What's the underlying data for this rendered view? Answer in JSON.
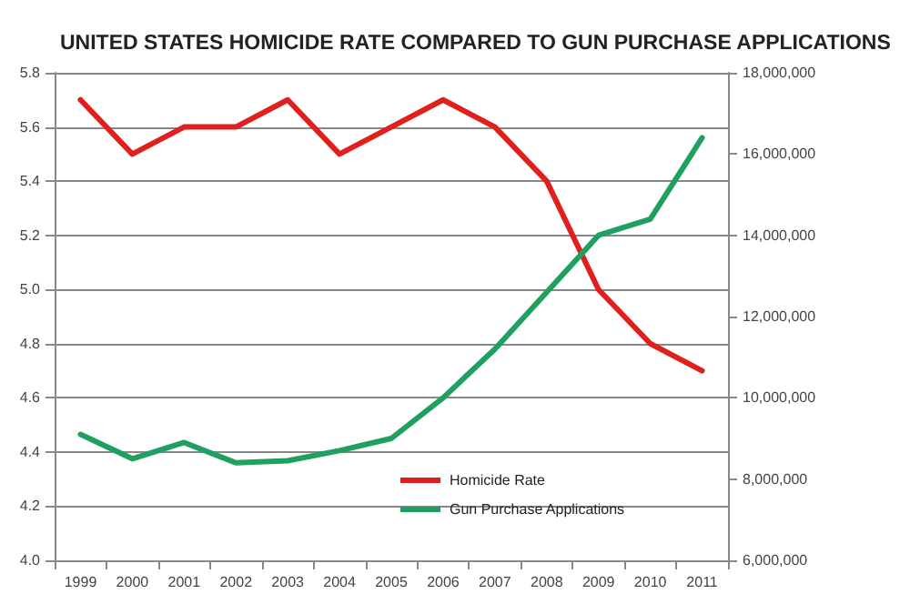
{
  "chart_data": {
    "type": "line",
    "title": "UNITED STATES HOMICIDE RATE COMPARED TO GUN PURCHASE APPLICATIONS",
    "categories": [
      "1999",
      "2000",
      "2001",
      "2002",
      "2003",
      "2004",
      "2005",
      "2006",
      "2007",
      "2008",
      "2009",
      "2010",
      "2011"
    ],
    "series": [
      {
        "name": "Homicide Rate",
        "color": "#e0201e",
        "values": [
          5.7,
          5.5,
          5.6,
          5.6,
          5.7,
          5.5,
          5.6,
          5.7,
          5.6,
          5.4,
          5.0,
          4.8,
          4.7
        ]
      },
      {
        "name": "Gun Purchase Applications",
        "color": "#20a060",
        "axis": "y2",
        "values": [
          9100000,
          8500000,
          8900000,
          8400000,
          8450000,
          8700000,
          9000000,
          10000000,
          11200000,
          12600000,
          14000000,
          14400000,
          16400000
        ]
      }
    ],
    "ylim": [
      4.0,
      5.8
    ],
    "yticks": [
      {
        "value": 4.0,
        "label": "4.0"
      },
      {
        "value": 4.2,
        "label": "4.2"
      },
      {
        "value": 4.4,
        "label": "4.4"
      },
      {
        "value": 4.6,
        "label": "4.6"
      },
      {
        "value": 4.8,
        "label": "4.8"
      },
      {
        "value": 5.0,
        "label": "5.0"
      },
      {
        "value": 5.2,
        "label": "5.2"
      },
      {
        "value": 5.4,
        "label": "5.4"
      },
      {
        "value": 5.6,
        "label": "5.6"
      },
      {
        "value": 5.8,
        "label": "5.8"
      }
    ],
    "y2lim": [
      6000000,
      18000000
    ],
    "y2ticks": [
      {
        "value": 6000000,
        "label": "6,000,000"
      },
      {
        "value": 8000000,
        "label": "8,000,000"
      },
      {
        "value": 10000000,
        "label": "10,000,000"
      },
      {
        "value": 12000000,
        "label": "12,000,000"
      },
      {
        "value": 14000000,
        "label": "14,000,000"
      },
      {
        "value": 16000000,
        "label": "16,000,000"
      },
      {
        "value": 18000000,
        "label": "18,000,000"
      }
    ],
    "grid": "y",
    "legend": "bottom",
    "marker": "none",
    "line_style": "solid"
  }
}
